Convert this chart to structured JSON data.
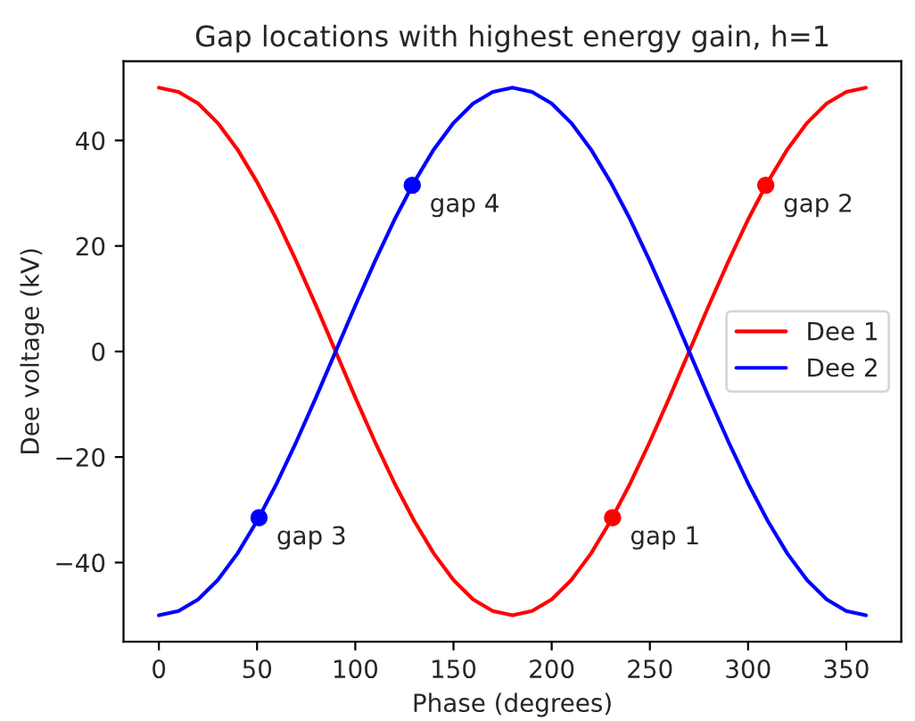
{
  "chart_data": {
    "type": "line",
    "title": "Gap locations with highest energy gain, h=1",
    "xlabel": "Phase (degrees)",
    "ylabel": "Dee voltage (kV)",
    "x": [
      0,
      10,
      20,
      30,
      40,
      50,
      60,
      70,
      80,
      90,
      100,
      110,
      120,
      130,
      140,
      150,
      160,
      170,
      180,
      190,
      200,
      210,
      220,
      230,
      240,
      250,
      260,
      270,
      280,
      290,
      300,
      310,
      320,
      330,
      340,
      350,
      360
    ],
    "series": [
      {
        "name": "Dee 1",
        "color": "#ff0000",
        "values": [
          50,
          49.2,
          47,
          43.3,
          38.3,
          32.1,
          25,
          17.1,
          8.7,
          0,
          -8.7,
          -17.1,
          -25,
          -32.1,
          -38.3,
          -43.3,
          -47,
          -49.2,
          -50,
          -49.2,
          -47,
          -43.3,
          -38.3,
          -32.1,
          -25,
          -17.1,
          -8.7,
          0,
          8.7,
          17.1,
          25,
          32.1,
          38.3,
          43.3,
          47,
          49.2,
          50
        ]
      },
      {
        "name": "Dee 2",
        "color": "#0000ff",
        "values": [
          -50,
          -49.2,
          -47,
          -43.3,
          -38.3,
          -32.1,
          -25,
          -17.1,
          -8.7,
          0,
          8.7,
          17.1,
          25,
          32.1,
          38.3,
          43.3,
          47,
          49.2,
          50,
          49.2,
          47,
          43.3,
          38.3,
          32.1,
          25,
          17.1,
          8.7,
          0,
          -8.7,
          -17.1,
          -25,
          -32.1,
          -38.3,
          -43.3,
          -47,
          -49.2,
          -50
        ]
      },
      {
        "type": "scatter",
        "color": "#ff0000",
        "marker": "circle",
        "x": [
          231,
          309
        ],
        "values": [
          -31.5,
          31.5
        ]
      },
      {
        "type": "scatter",
        "color": "#0000ff",
        "marker": "circle",
        "x": [
          51,
          129
        ],
        "values": [
          -31.5,
          31.5
        ]
      }
    ],
    "annotations": [
      {
        "text": "gap 1",
        "x": 231,
        "y": -31.5
      },
      {
        "text": "gap 2",
        "x": 309,
        "y": 31.5
      },
      {
        "text": "gap 3",
        "x": 51,
        "y": -31.5
      },
      {
        "text": "gap 4",
        "x": 129,
        "y": 31.5
      }
    ],
    "xlim": [
      -18,
      378
    ],
    "ylim": [
      -55,
      55
    ],
    "xticks": [
      0,
      50,
      100,
      150,
      200,
      250,
      300,
      350
    ],
    "yticks": [
      -40,
      -20,
      0,
      20,
      40
    ],
    "legend": "right",
    "grid": false,
    "marker": "none",
    "line_style": "solid"
  }
}
